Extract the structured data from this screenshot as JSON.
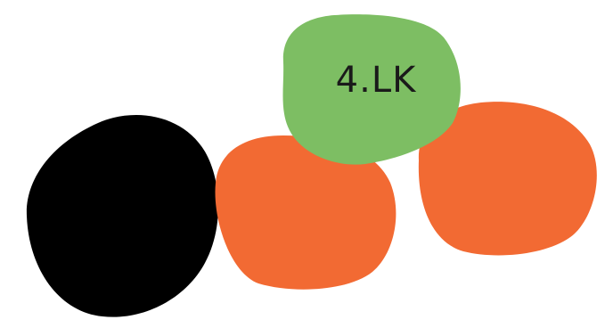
{
  "colors": {
    "black": "#000000",
    "orange": "#f26a33",
    "green": "#7dbe63",
    "text": "#1a1a1a"
  },
  "blobs": {
    "black": {
      "label": ""
    },
    "orange_center": {
      "label": ""
    },
    "orange_right": {
      "label": ""
    },
    "green_top": {
      "label": "4.LK"
    }
  }
}
